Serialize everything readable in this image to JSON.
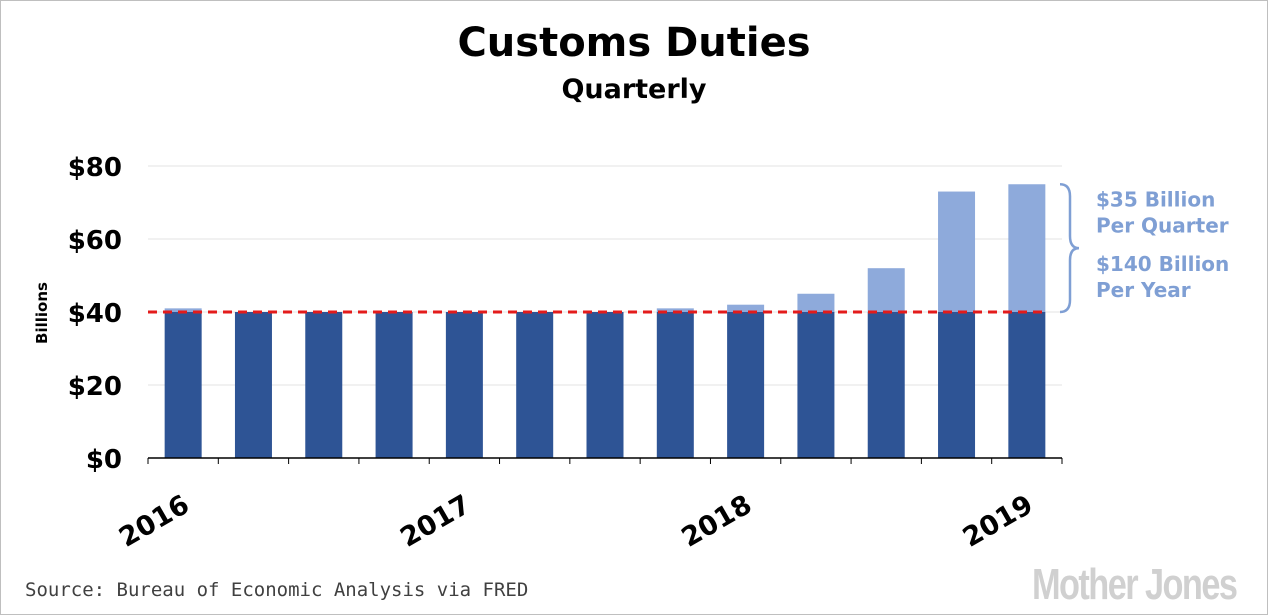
{
  "chart_data": {
    "type": "bar",
    "title": "Customs Duties",
    "subtitle": "Quarterly",
    "ylabel": "Billions",
    "ylim": [
      0,
      80
    ],
    "yticks": [
      0,
      20,
      40,
      60,
      80
    ],
    "ytick_labels": [
      "$0",
      "$20",
      "$40",
      "$60",
      "$80"
    ],
    "categories": [
      "2016 Q1",
      "2016 Q2",
      "2016 Q3",
      "2016 Q4",
      "2017 Q1",
      "2017 Q2",
      "2017 Q3",
      "2017 Q4",
      "2018 Q1",
      "2018 Q2",
      "2018 Q3",
      "2018 Q4",
      "2019 Q1"
    ],
    "x_tick_labels": [
      {
        "index": 0,
        "label": "2016"
      },
      {
        "index": 4,
        "label": "2017"
      },
      {
        "index": 8,
        "label": "2018"
      },
      {
        "index": 12,
        "label": "2019"
      }
    ],
    "values": [
      41,
      40,
      40,
      40,
      40,
      40,
      40,
      41,
      42,
      45,
      52,
      73,
      75
    ],
    "baseline": 40,
    "colors": {
      "base": "#2e5495",
      "excess": "#8eaadb",
      "baseline_line": "#e31b1b",
      "grid": "#e3e3e3",
      "annotation": "#7f9fd4"
    },
    "grid": true,
    "annotations": [
      {
        "line1": "$35 Billion",
        "line2": "Per Quarter"
      },
      {
        "line1": "$140 Billion",
        "line2": "Per Year"
      }
    ]
  },
  "footer": {
    "source": "Source: Bureau of Economic Analysis via FRED",
    "logo": "Mother Jones"
  }
}
